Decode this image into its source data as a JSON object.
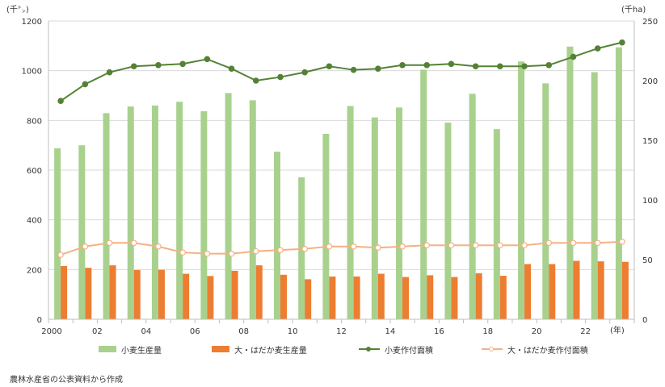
{
  "chart_data": {
    "type": "bar+line",
    "years": [
      2000,
      2001,
      2002,
      2003,
      2004,
      2005,
      2006,
      2007,
      2008,
      2009,
      2010,
      2011,
      2012,
      2013,
      2014,
      2015,
      2016,
      2017,
      2018,
      2019,
      2020,
      2021,
      2022,
      2023
    ],
    "x_tick_labels": [
      "2000",
      "",
      "02",
      "",
      "04",
      "",
      "06",
      "",
      "08",
      "",
      "10",
      "",
      "12",
      "",
      "14",
      "",
      "16",
      "",
      "18",
      "",
      "20",
      "",
      "22",
      ""
    ],
    "x_unit": "(年)",
    "y_left": {
      "unit": "(千㌧)",
      "range": [
        0,
        1200
      ],
      "ticks": [
        "0",
        "200",
        "400",
        "600",
        "800",
        "1000",
        "1200"
      ]
    },
    "y_right": {
      "unit": "(千ha)",
      "range": [
        0,
        250
      ],
      "ticks": [
        "0",
        "50",
        "100",
        "150",
        "200",
        "250"
      ]
    },
    "series": [
      {
        "name": "小麦生産量",
        "type": "bar",
        "axis": "left",
        "color": "#a9d18e",
        "values": [
          688,
          700,
          829,
          856,
          860,
          875,
          837,
          910,
          881,
          674,
          571,
          746,
          858,
          812,
          852,
          1004,
          791,
          907,
          765,
          1037,
          949,
          1097,
          994,
          1094
        ]
      },
      {
        "name": "大・はだか麦生産量",
        "type": "bar",
        "axis": "left",
        "color": "#ed7d31",
        "values": [
          214,
          207,
          217,
          198,
          199,
          183,
          174,
          195,
          217,
          179,
          161,
          172,
          172,
          183,
          170,
          177,
          170,
          185,
          175,
          222,
          222,
          235,
          233,
          231
        ]
      },
      {
        "name": "小麦作付面積",
        "type": "line",
        "axis": "right",
        "color": "#548235",
        "values": [
          183,
          197,
          207,
          212,
          213,
          214,
          218,
          210,
          200,
          203,
          207,
          212,
          209,
          210,
          213,
          213,
          214,
          212,
          212,
          212,
          213,
          220,
          227,
          232
        ]
      },
      {
        "name": "大・はだか麦作付面積",
        "type": "line",
        "axis": "right",
        "color": "#f4b183",
        "values": [
          54,
          61,
          64,
          64,
          61,
          56,
          55,
          55,
          57,
          58,
          59,
          61,
          61,
          60,
          61,
          62,
          62,
          62,
          62,
          62,
          64,
          64,
          64,
          65
        ]
      }
    ]
  },
  "legend": {
    "wheat_prod": "小麦生産量",
    "barley_prod": "大・はだか麦生産量",
    "wheat_area": "小麦作付面積",
    "barley_area": "大・はだか麦作付面積"
  },
  "source_note": "農林水産省の公表資料から作成"
}
